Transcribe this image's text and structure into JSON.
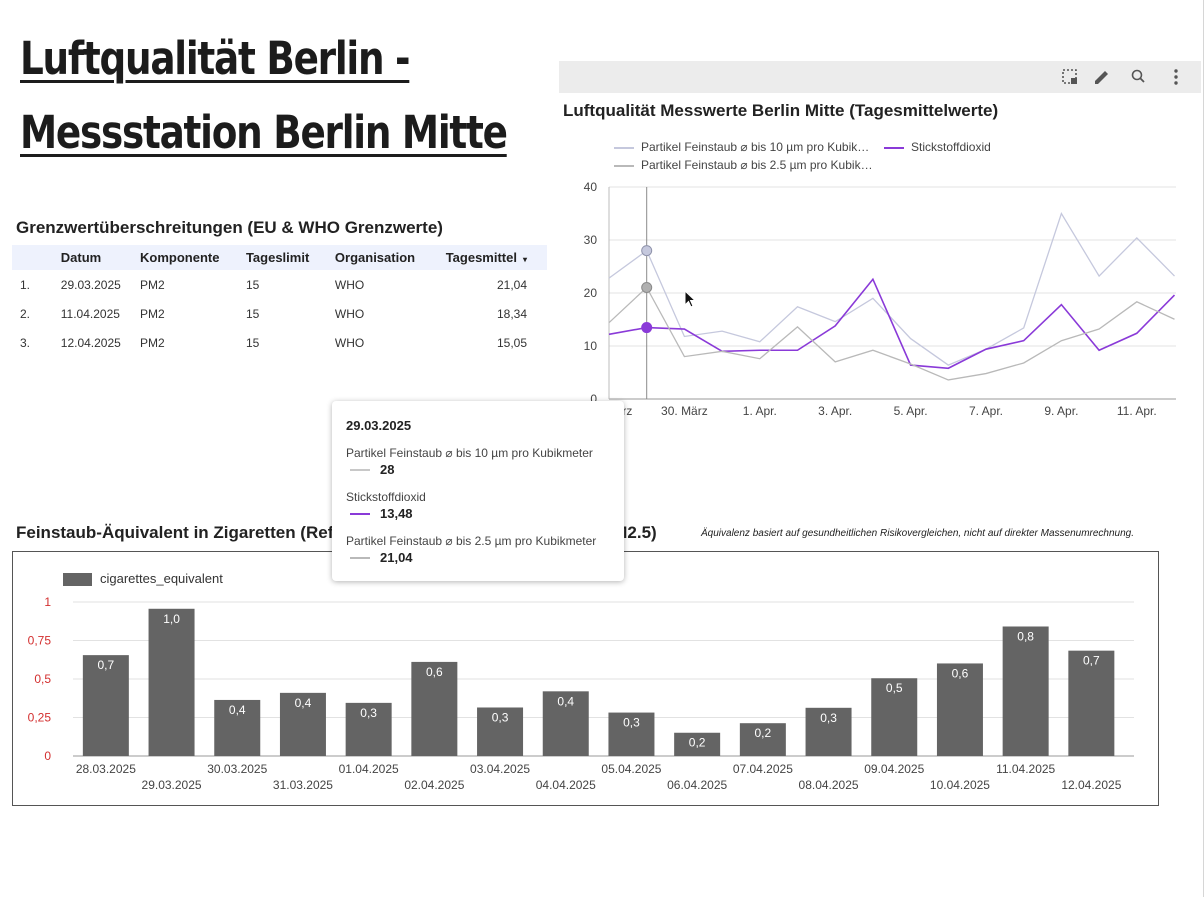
{
  "page": {
    "title_line1": "Luftqualität Berlin -",
    "title_line2": "Messstation Berlin Mitte"
  },
  "limits_table": {
    "title": "Grenzwertüberschreitungen (EU & WHO Grenzwerte)",
    "headers": [
      "Datum",
      "Komponente",
      "Tageslimit",
      "Organisation",
      "Tagesmittel"
    ],
    "sort_indicator": "▾",
    "rows": [
      {
        "index": "1.",
        "date": "29.03.2025",
        "component": "PM2",
        "limit": "15",
        "org": "WHO",
        "mean": "21,04"
      },
      {
        "index": "2.",
        "date": "11.04.2025",
        "component": "PM2",
        "limit": "15",
        "org": "WHO",
        "mean": "18,34"
      },
      {
        "index": "3.",
        "date": "12.04.2025",
        "component": "PM2",
        "limit": "15",
        "org": "WHO",
        "mean": "15,05"
      }
    ]
  },
  "toolbar": {
    "icons": [
      "select-region-icon",
      "edit-pencil-icon",
      "zoom-icon",
      "more-vert-icon"
    ]
  },
  "line_chart_title": "Luftqualität Messwerte Berlin Mitte (Tagesmittelwerte)",
  "line_legend": {
    "pm10": "Partikel Feinstaub ⌀ bis 10 µm pro Kubik…",
    "no2": "Stickstoffdioxid",
    "pm25": "Partikel Feinstaub ⌀ bis 2.5 µm pro Kubik…"
  },
  "tooltip": {
    "date": "29.03.2025",
    "pm10_label": "Partikel Feinstaub ⌀ bis 10 µm pro Kubikmeter",
    "pm10_value": "28",
    "no2_label": "Stickstoffdioxid",
    "no2_value": "13,48",
    "pm25_label": "Partikel Feinstaub ⌀ bis 2.5 µm pro Kubikmeter",
    "pm25_value": "21,04"
  },
  "bar_chart_title": "Feinstaub-Äquivalent in Zigaretten (Referenzwert: 1 Zigarette ≈ 22 µg/m³ PM2.5)",
  "bar_chart_note": "Äquivalenz basiert auf gesundheitlichen Risikovergleichen, nicht auf direkter Massenumrechnung.",
  "chart_data": [
    {
      "type": "line",
      "title": "Luftqualität Messwerte Berlin Mitte (Tagesmittelwerte)",
      "x": [
        "28.03.2025",
        "29.03.2025",
        "30.03.2025",
        "31.03.2025",
        "01.04.2025",
        "02.04.2025",
        "03.04.2025",
        "04.04.2025",
        "05.04.2025",
        "06.04.2025",
        "07.04.2025",
        "08.04.2025",
        "09.04.2025",
        "10.04.2025",
        "11.04.2025",
        "12.04.2025"
      ],
      "x_tick_labels": [
        "28. März",
        "30. März",
        "1. Apr.",
        "3. Apr.",
        "5. Apr.",
        "7. Apr.",
        "9. Apr.",
        "11. Apr."
      ],
      "y_ticks": [
        "0",
        "10",
        "20",
        "30",
        "40"
      ],
      "ylim": [
        0,
        40
      ],
      "series": [
        {
          "name": "Partikel Feinstaub ⌀ bis 10 µm pro Kubikmeter",
          "color": "#c5c8dd",
          "values": [
            22.8,
            28,
            11.8,
            12.8,
            10.8,
            17.4,
            14.6,
            19,
            11.4,
            6.4,
            9.4,
            13.4,
            35,
            23.2,
            30.4,
            23.2
          ]
        },
        {
          "name": "Stickstoffdioxid",
          "color": "#8a3ad8",
          "values": [
            12.2,
            13.48,
            13.2,
            9,
            9.2,
            9.2,
            13.8,
            22.6,
            6.4,
            5.8,
            9.4,
            11,
            17.8,
            9.2,
            12.4,
            19.6
          ]
        },
        {
          "name": "Partikel Feinstaub ⌀ bis 2.5 µm pro Kubikmeter",
          "color": "#b9b9b9",
          "values": [
            14.4,
            21.04,
            8,
            9,
            7.6,
            13.6,
            7,
            9.2,
            6.6,
            3.6,
            4.8,
            6.8,
            11,
            13.2,
            18.34,
            15.05
          ]
        }
      ]
    },
    {
      "type": "bar",
      "legend": "cigarettes_equivalent",
      "color": "#646464",
      "categories": [
        "28.03.2025",
        "29.03.2025",
        "30.03.2025",
        "31.03.2025",
        "01.04.2025",
        "02.04.2025",
        "03.04.2025",
        "04.04.2025",
        "05.04.2025",
        "06.04.2025",
        "07.04.2025",
        "08.04.2025",
        "09.04.2025",
        "10.04.2025",
        "11.04.2025",
        "12.04.2025"
      ],
      "values": [
        0.655,
        0.956,
        0.364,
        0.41,
        0.345,
        0.611,
        0.315,
        0.42,
        0.282,
        0.151,
        0.213,
        0.313,
        0.505,
        0.601,
        0.841,
        0.684
      ],
      "labels": [
        "0,7",
        "1,0",
        "0,4",
        "0,4",
        "0,3",
        "0,6",
        "0,3",
        "0,4",
        "0,3",
        "0,2",
        "0,2",
        "0,3",
        "0,5",
        "0,6",
        "0,8",
        "0,7"
      ],
      "y_ticks": [
        "0",
        "0,25",
        "0,5",
        "0,75",
        "1"
      ],
      "ylim": [
        0,
        1
      ]
    }
  ]
}
